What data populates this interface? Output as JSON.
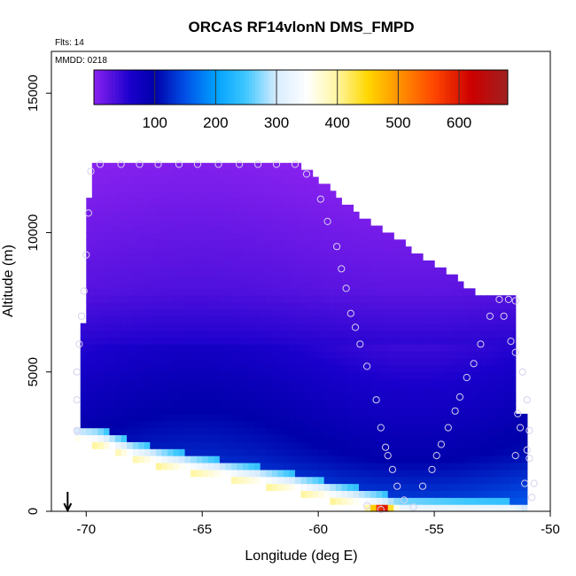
{
  "chart_data": {
    "type": "heatmap",
    "title": "ORCAS RF14vlonN DMS_FMPD",
    "note_flights": "Flts: 14",
    "note_date": "MMDD: 0218",
    "xlabel": "Longitude (deg E)",
    "ylabel": "Altitude (m)",
    "xlim": [
      -71.5,
      -50
    ],
    "ylim": [
      0,
      16500
    ],
    "x_ticks": [
      -70,
      -65,
      -60,
      -55,
      -50
    ],
    "x_tick_labels": [
      "-70",
      "-65",
      "-60",
      "-55",
      "-50"
    ],
    "y_ticks": [
      0,
      5000,
      10000,
      15000
    ],
    "y_tick_labels": [
      "0",
      "5000",
      "10000",
      "15000"
    ],
    "colorbar": {
      "range": [
        0,
        680
      ],
      "ticks": [
        100,
        200,
        300,
        400,
        500,
        600
      ],
      "tick_labels": [
        "100",
        "200",
        "300",
        "400",
        "500",
        "600"
      ],
      "dividers": [
        100,
        200,
        300,
        400,
        500,
        600
      ],
      "stops": [
        {
          "v": 0,
          "c": "#8a22f0"
        },
        {
          "v": 60,
          "c": "#1a00cc"
        },
        {
          "v": 100,
          "c": "#0000aa"
        },
        {
          "v": 150,
          "c": "#0050e6"
        },
        {
          "v": 200,
          "c": "#00a0ff"
        },
        {
          "v": 250,
          "c": "#40c8ff"
        },
        {
          "v": 300,
          "c": "#d8ecff"
        },
        {
          "v": 350,
          "c": "#ffffff"
        },
        {
          "v": 400,
          "c": "#fff6a0"
        },
        {
          "v": 450,
          "c": "#ffd700"
        },
        {
          "v": 500,
          "c": "#ff9400"
        },
        {
          "v": 560,
          "c": "#ff4500"
        },
        {
          "v": 620,
          "c": "#cc0000"
        },
        {
          "v": 680,
          "c": "#a02020"
        }
      ]
    },
    "grid": false,
    "legend": "colorbar top",
    "field": {
      "lon_step": 0.25,
      "alt_step": 250,
      "top_edge": [
        [
          -70.25,
          2900
        ],
        [
          -70.0,
          10600
        ],
        [
          -69.6,
          12500
        ],
        [
          -61.0,
          12500
        ],
        [
          -58.5,
          10700
        ],
        [
          -53.0,
          7650
        ],
        [
          -51.5,
          7650
        ],
        [
          -51.5,
          3500
        ],
        [
          -50.9,
          3500
        ],
        [
          -50.9,
          0
        ]
      ],
      "bottom_edge": [
        [
          -70.5,
          2800
        ],
        [
          -69.5,
          2700
        ],
        [
          -68.0,
          2200
        ],
        [
          -66.0,
          1800
        ],
        [
          -64.0,
          1500
        ],
        [
          -62.0,
          1200
        ],
        [
          -60.0,
          850
        ],
        [
          -58.5,
          550
        ],
        [
          -57.5,
          400
        ],
        [
          -56.5,
          150
        ],
        [
          -50.9,
          0
        ]
      ],
      "surface_warm": [
        [
          -58.0,
          0.1
        ],
        [
          -57.6,
          0.75
        ],
        [
          -57.2,
          1.0
        ],
        [
          -56.8,
          0.6
        ],
        [
          -56.4,
          0.5
        ],
        [
          -55.5,
          0.5
        ],
        [
          -53.0,
          0.5
        ],
        [
          -51.5,
          0.5
        ],
        [
          -51.0,
          0.45
        ]
      ],
      "background_levels": [
        [
          0,
          0.24
        ],
        [
          2000,
          0.16
        ],
        [
          5000,
          0.1
        ],
        [
          8000,
          0.04
        ],
        [
          12500,
          0.0
        ]
      ]
    },
    "flight_track": [
      {
        "lon": -69.8,
        "alt": 12200
      },
      {
        "lon": -69.4,
        "alt": 12450
      },
      {
        "lon": -68.5,
        "alt": 12450
      },
      {
        "lon": -67.7,
        "alt": 12450
      },
      {
        "lon": -66.9,
        "alt": 12450
      },
      {
        "lon": -66.0,
        "alt": 12450
      },
      {
        "lon": -65.2,
        "alt": 12450
      },
      {
        "lon": -64.3,
        "alt": 12450
      },
      {
        "lon": -63.4,
        "alt": 12450
      },
      {
        "lon": -62.6,
        "alt": 12450
      },
      {
        "lon": -61.8,
        "alt": 12450
      },
      {
        "lon": -61.0,
        "alt": 12450
      },
      {
        "lon": -60.5,
        "alt": 12100
      },
      {
        "lon": -59.9,
        "alt": 11200
      },
      {
        "lon": -59.6,
        "alt": 10400
      },
      {
        "lon": -59.2,
        "alt": 9500
      },
      {
        "lon": -59.0,
        "alt": 8700
      },
      {
        "lon": -58.8,
        "alt": 8000
      },
      {
        "lon": -58.6,
        "alt": 7100
      },
      {
        "lon": -58.4,
        "alt": 6600
      },
      {
        "lon": -58.2,
        "alt": 6000
      },
      {
        "lon": -57.9,
        "alt": 5200
      },
      {
        "lon": -57.5,
        "alt": 4000
      },
      {
        "lon": -57.3,
        "alt": 3000
      },
      {
        "lon": -57.1,
        "alt": 2300
      },
      {
        "lon": -57.0,
        "alt": 2000
      },
      {
        "lon": -56.8,
        "alt": 1500
      },
      {
        "lon": -56.6,
        "alt": 900
      },
      {
        "lon": -56.3,
        "alt": 400
      },
      {
        "lon": -55.9,
        "alt": 150
      },
      {
        "lon": -55.5,
        "alt": 900
      },
      {
        "lon": -55.1,
        "alt": 1500
      },
      {
        "lon": -54.9,
        "alt": 2000
      },
      {
        "lon": -54.7,
        "alt": 2400
      },
      {
        "lon": -54.4,
        "alt": 3000
      },
      {
        "lon": -54.1,
        "alt": 3600
      },
      {
        "lon": -53.9,
        "alt": 4100
      },
      {
        "lon": -53.6,
        "alt": 4800
      },
      {
        "lon": -53.3,
        "alt": 5300
      },
      {
        "lon": -53.0,
        "alt": 6000
      },
      {
        "lon": -52.6,
        "alt": 7000
      },
      {
        "lon": -52.2,
        "alt": 7600
      },
      {
        "lon": -51.8,
        "alt": 7600
      },
      {
        "lon": -51.5,
        "alt": 7550
      },
      {
        "lon": -52.0,
        "alt": 7000
      },
      {
        "lon": -51.7,
        "alt": 6100
      },
      {
        "lon": -51.5,
        "alt": 5700
      },
      {
        "lon": -51.2,
        "alt": 5000
      },
      {
        "lon": -51.0,
        "alt": 4000
      },
      {
        "lon": -51.3,
        "alt": 3000
      },
      {
        "lon": -50.9,
        "alt": 2900
      },
      {
        "lon": -51.0,
        "alt": 2200
      },
      {
        "lon": -50.9,
        "alt": 1900
      },
      {
        "lon": -50.7,
        "alt": 1000
      },
      {
        "lon": -50.8,
        "alt": 500
      },
      {
        "lon": -57.9,
        "alt": 200
      },
      {
        "lon": -57.3,
        "alt": 60
      },
      {
        "lon": -51.5,
        "alt": 2000
      },
      {
        "lon": -51.4,
        "alt": 3500
      },
      {
        "lon": -51.1,
        "alt": 1000
      },
      {
        "lon": -70.0,
        "alt": 9200
      },
      {
        "lon": -70.1,
        "alt": 7900
      },
      {
        "lon": -70.2,
        "alt": 7000
      },
      {
        "lon": -70.3,
        "alt": 6000
      },
      {
        "lon": -70.4,
        "alt": 5000
      },
      {
        "lon": -70.4,
        "alt": 4000
      },
      {
        "lon": -70.4,
        "alt": 2900
      },
      {
        "lon": -69.9,
        "alt": 10700
      }
    ],
    "arrow": {
      "lon": -70.8,
      "alt_top": 700,
      "direction": "down"
    }
  }
}
